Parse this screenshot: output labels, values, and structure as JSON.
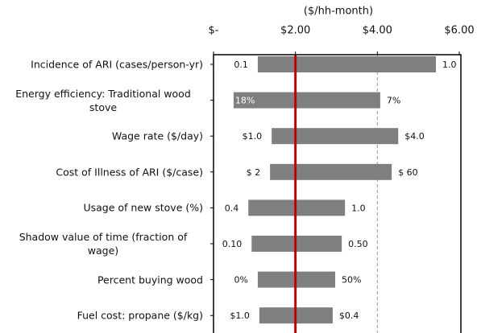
{
  "chart_data": {
    "type": "tornado",
    "x_label": "($/hh-month)",
    "categories": [
      "Incidence of ARI (cases/person-yr)",
      "Energy efficiency: Traditional wood stove",
      "Wage rate ($/day)",
      "Cost of Illness of ARI ($/case)",
      "Usage of new stove (%)",
      "Shadow value of time (fraction of wage)",
      "Percent buying wood",
      "Fuel cost: propane ($/kg)"
    ],
    "low": [
      1.08,
      0.49,
      1.42,
      1.38,
      0.85,
      0.93,
      1.08,
      1.12
    ],
    "high": [
      5.43,
      4.07,
      4.51,
      4.35,
      3.21,
      3.13,
      2.97,
      2.91
    ],
    "left_labels": [
      "0.1",
      "18%",
      "$1.0",
      "$ 2",
      "0.4",
      "0.10",
      "0%",
      "$1.0"
    ],
    "right_labels": [
      "1.0",
      "7%",
      "$4.0",
      "$ 60",
      "1.0",
      "0.50",
      "50%",
      "$0.4"
    ],
    "color": "#7f7f7f",
    "xlim": [
      0,
      6
    ],
    "xticks": [
      {
        "value": 0,
        "label": "$-"
      },
      {
        "value": 2,
        "label": "$2.00"
      },
      {
        "value": 4,
        "label": "$4.00"
      },
      {
        "value": 6,
        "label": "$6.00"
      }
    ],
    "reference_line": {
      "value": 2,
      "color": "#c00000"
    },
    "dashed_line": {
      "value": 4,
      "color": "#a6a6a6"
    }
  }
}
